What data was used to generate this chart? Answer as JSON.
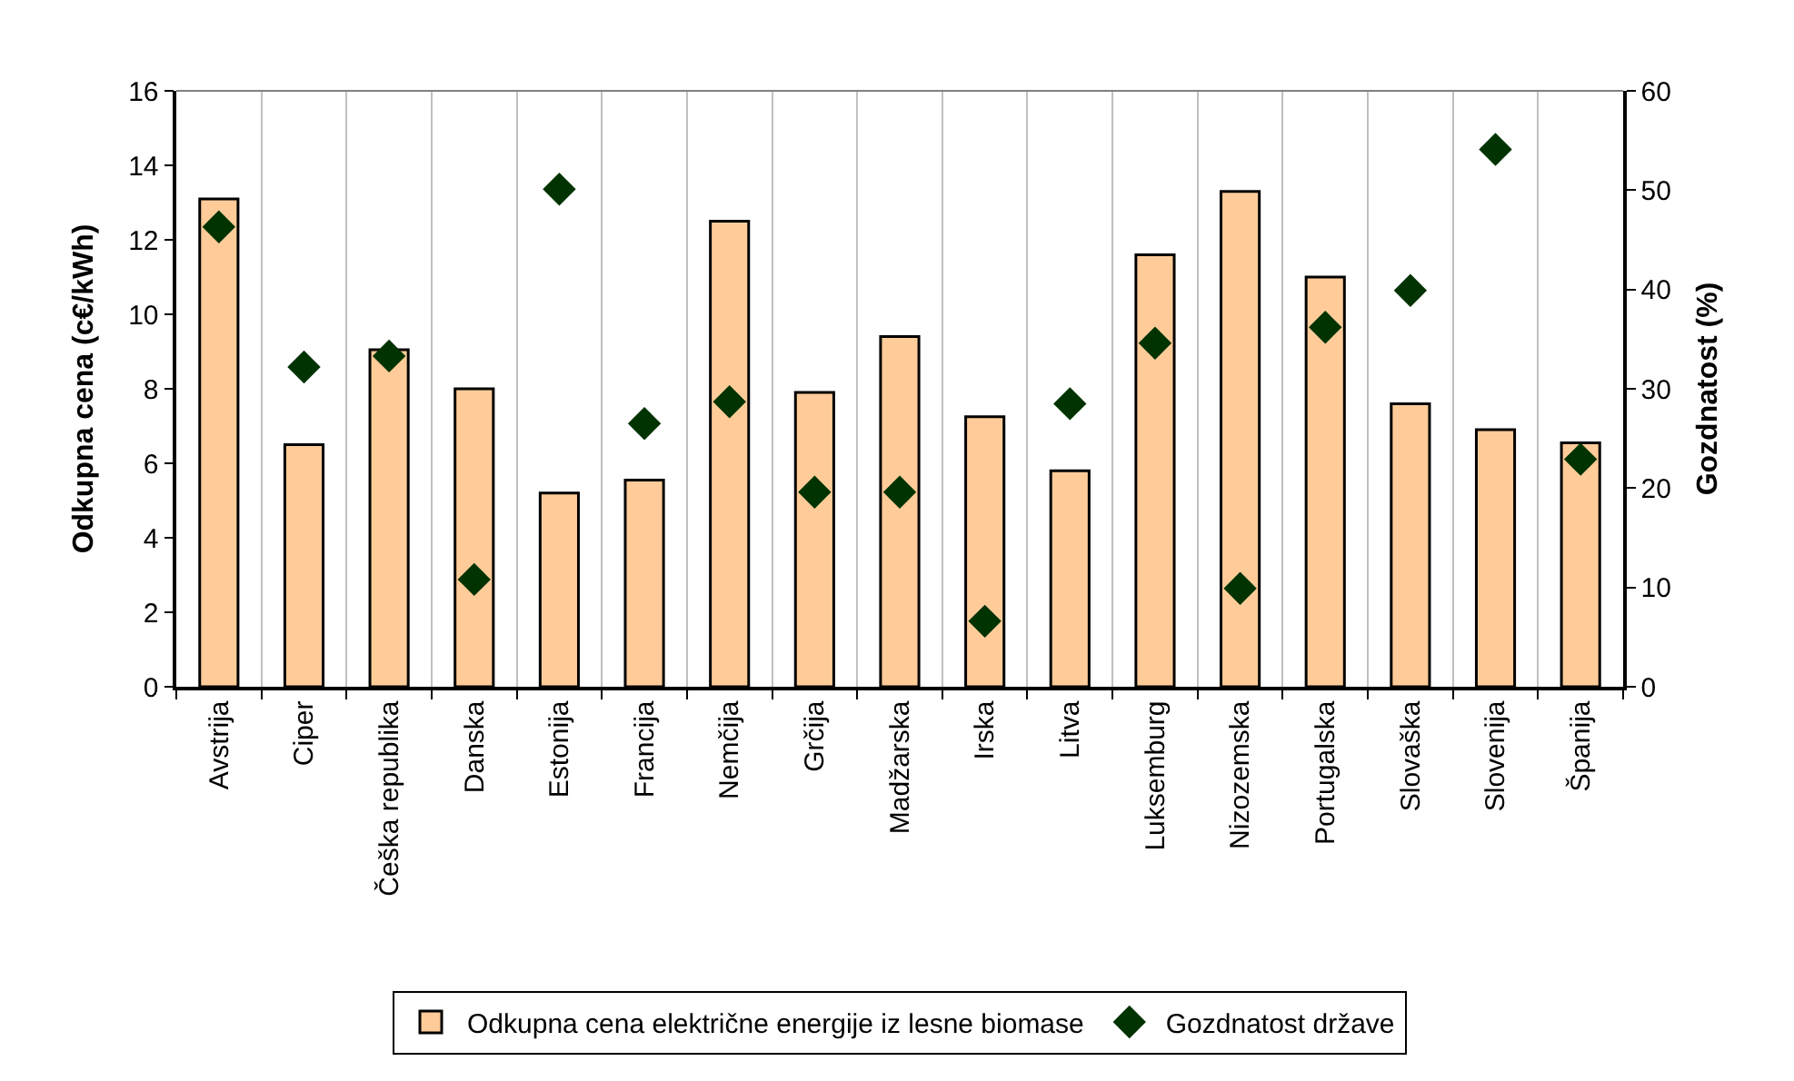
{
  "chart_data": {
    "type": "bar",
    "categories": [
      "Avstrija",
      "Ciper",
      "Češka republika",
      "Danska",
      "Estonija",
      "Francija",
      "Nemčija",
      "Grčija",
      "Madžarska",
      "Irska",
      "Litva",
      "Luksemburg",
      "Nizozemska",
      "Portugalska",
      "Slovaška",
      "Slovenija",
      "Španija"
    ],
    "series": [
      {
        "name": "Odkupna cena električne energije iz lesne biomase",
        "color": "#ffcc99",
        "values": [
          13.1,
          6.5,
          9.05,
          8.0,
          5.2,
          5.55,
          12.5,
          7.9,
          9.4,
          7.25,
          5.8,
          11.6,
          13.3,
          11.0,
          7.6,
          6.9,
          6.55
        ]
      },
      {
        "name": "Gozdnatost države",
        "type": "scatter",
        "axis": "y2",
        "color": "#003300",
        "marker": "diamond",
        "values": [
          46.3,
          32.2,
          33.3,
          10.8,
          50.1,
          26.5,
          28.7,
          19.6,
          19.6,
          6.6,
          28.5,
          34.6,
          9.9,
          36.2,
          39.9,
          54.1,
          22.9
        ]
      }
    ],
    "ylabel": "Odkupna cena (c€/kWh)",
    "y2label": "Gozdnatost (%)",
    "ylim": [
      0,
      16
    ],
    "yticks": [
      0,
      2,
      4,
      6,
      8,
      10,
      12,
      14,
      16
    ],
    "y2lim": [
      0,
      60
    ],
    "y2ticks": [
      0,
      10,
      20,
      30,
      40,
      50,
      60
    ],
    "grid": "x",
    "legend": "bottom"
  }
}
